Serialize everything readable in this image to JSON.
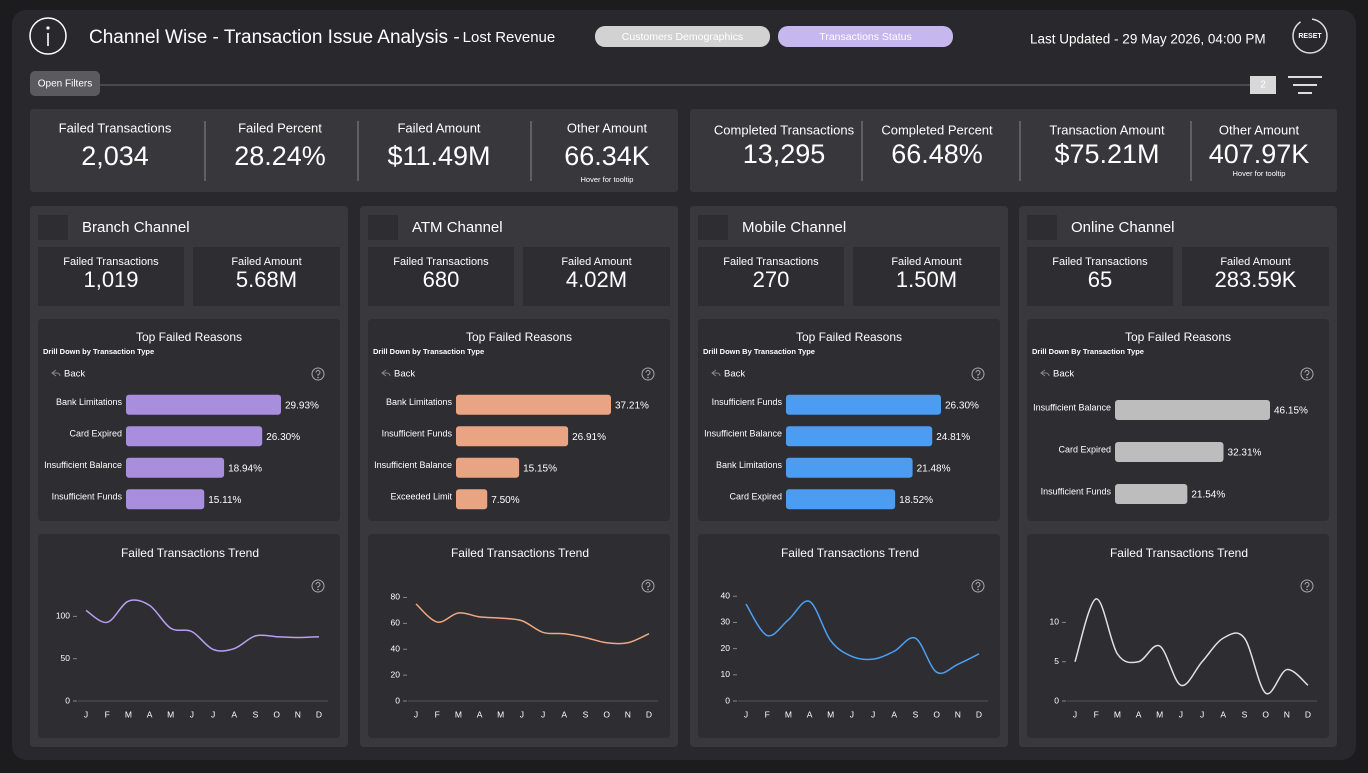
{
  "header": {
    "title": "Channel Wise - Transaction Issue Analysis -",
    "subtitle": "Lost Revenue",
    "tabs": [
      "Customers Demographics",
      "Transactions Status"
    ],
    "last_updated": "Last Updated - 29 May 2026, 04:00 PM",
    "reset": "RESET",
    "filters_button": "Open Filters",
    "filter_count": "2"
  },
  "kpis": [
    {
      "label": "Failed Transactions",
      "value": "2,034"
    },
    {
      "label": "Failed Percent",
      "value": "28.24%"
    },
    {
      "label": "Failed Amount",
      "value": "$11.49M"
    },
    {
      "label": "Other Amount",
      "value": "66.34K",
      "note": "Hover for tooltip"
    },
    {
      "label": "Completed Transactions",
      "value": "13,295"
    },
    {
      "label": "Completed Percent",
      "value": "66.48%"
    },
    {
      "label": "Transaction Amount",
      "value": "$75.21M"
    },
    {
      "label": "Other Amount",
      "value": "407.97K",
      "note": "Hover for tooltip"
    }
  ],
  "channels": [
    {
      "name": "Branch Channel",
      "kpis": [
        {
          "label": "Failed Transactions",
          "value": "1,019"
        },
        {
          "label": "Failed Amount",
          "value": "5.68M"
        }
      ]
    },
    {
      "name": "ATM Channel",
      "kpis": [
        {
          "label": "Failed Transactions",
          "value": "680"
        },
        {
          "label": "Failed Amount",
          "value": "4.02M"
        }
      ]
    },
    {
      "name": "Mobile Channel",
      "kpis": [
        {
          "label": "Failed Transactions",
          "value": "270"
        },
        {
          "label": "Failed Amount",
          "value": "1.50M"
        }
      ]
    },
    {
      "name": "Online Channel",
      "kpis": [
        {
          "label": "Failed Transactions",
          "value": "65"
        },
        {
          "label": "Failed Amount",
          "value": "283.59K"
        }
      ]
    }
  ],
  "chart_data": [
    {
      "type": "bar",
      "title": "Top Failed Reasons",
      "subtitle": "Drill Down by Transaction Type",
      "back": "Back",
      "categories": [
        "Bank Limitations",
        "Card Expired",
        "Insufficient Balance",
        "Insufficient Funds"
      ],
      "values": [
        29.93,
        26.3,
        18.94,
        15.11
      ],
      "value_labels": [
        "29.93%",
        "26.30%",
        "18.94%",
        "15.11%"
      ],
      "color": "#a98edd"
    },
    {
      "type": "line",
      "title": "Failed Transactions Trend",
      "categories": [
        "J",
        "F",
        "M",
        "A",
        "M",
        "J",
        "J",
        "A",
        "S",
        "O",
        "N",
        "D"
      ],
      "values": [
        107,
        93,
        118,
        113,
        86,
        82,
        61,
        62,
        77,
        76,
        75,
        76
      ],
      "color": "#b99ff0",
      "ylim": [
        0,
        130
      ],
      "yticks": [
        0,
        50,
        100
      ]
    },
    {
      "type": "bar",
      "title": "Top Failed Reasons",
      "subtitle": "Drill Down by Transaction Type",
      "back": "Back",
      "categories": [
        "Bank Limitations",
        "Insufficient Funds",
        "Insufficient Balance",
        "Exceeded Limit"
      ],
      "values": [
        37.21,
        26.91,
        15.15,
        7.5
      ],
      "value_labels": [
        "37.21%",
        "26.91%",
        "15.15%",
        "7.50%"
      ],
      "color": "#e9a583"
    },
    {
      "type": "line",
      "title": "Failed Transactions Trend",
      "categories": [
        "J",
        "F",
        "M",
        "A",
        "M",
        "J",
        "J",
        "A",
        "S",
        "O",
        "N",
        "D"
      ],
      "values": [
        75,
        61,
        68,
        65,
        64,
        62,
        53,
        52,
        49,
        45,
        45,
        52
      ],
      "color": "#f0a882",
      "ylim": [
        0,
        85
      ],
      "yticks": [
        0,
        20,
        40,
        60,
        80
      ]
    },
    {
      "type": "bar",
      "title": "Top Failed Reasons",
      "subtitle": "Drill Down By Transaction Type",
      "back": "Back",
      "categories": [
        "Insufficient Funds",
        "Insufficient Balance",
        "Bank Limitations",
        "Card Expired"
      ],
      "values": [
        26.3,
        24.81,
        21.48,
        18.52
      ],
      "value_labels": [
        "26.30%",
        "24.81%",
        "21.48%",
        "18.52%"
      ],
      "color": "#4c9cf2"
    },
    {
      "type": "line",
      "title": "Failed Transactions Trend",
      "categories": [
        "J",
        "F",
        "M",
        "A",
        "M",
        "J",
        "J",
        "A",
        "S",
        "O",
        "N",
        "D"
      ],
      "values": [
        37,
        25,
        31,
        38,
        23,
        17,
        16,
        19,
        24,
        11,
        14,
        18
      ],
      "color": "#4d9ff4",
      "ylim": [
        0,
        42
      ],
      "yticks": [
        0,
        10,
        20,
        30,
        40
      ]
    },
    {
      "type": "bar",
      "title": "Top Failed Reasons",
      "subtitle": "Drill Down By Transaction Type",
      "back": "Back",
      "categories": [
        "Insufficient Balance",
        "Card Expired",
        "Insufficient Funds"
      ],
      "values": [
        46.15,
        32.31,
        21.54
      ],
      "value_labels": [
        "46.15%",
        "32.31%",
        "21.54%"
      ],
      "color": "#bdbdbd"
    },
    {
      "type": "line",
      "title": "Failed Transactions Trend",
      "categories": [
        "J",
        "F",
        "M",
        "A",
        "M",
        "J",
        "J",
        "A",
        "S",
        "O",
        "N",
        "D"
      ],
      "values": [
        5,
        13,
        6,
        5,
        7,
        2,
        5,
        8,
        8,
        1,
        4,
        2
      ],
      "color": "#e0e0e0",
      "ylim": [
        0,
        14
      ],
      "yticks": [
        0,
        5,
        10
      ]
    }
  ]
}
